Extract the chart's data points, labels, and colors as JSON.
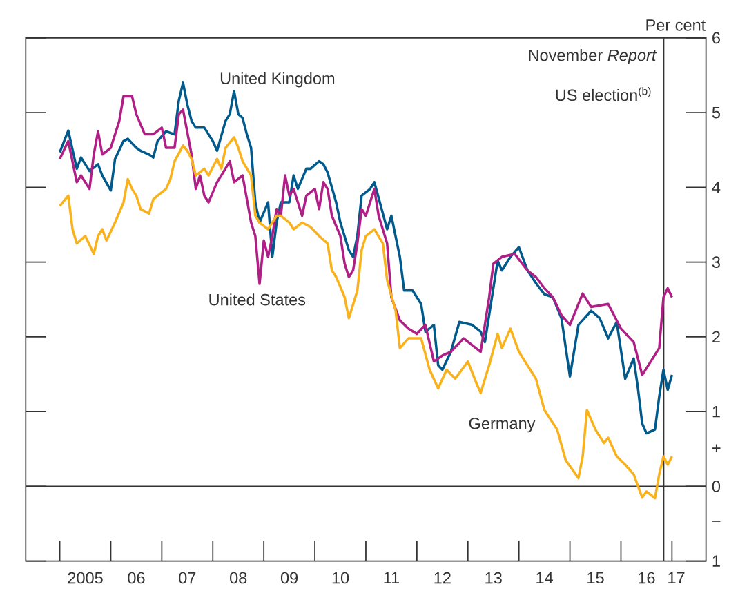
{
  "chart_data": {
    "type": "line",
    "ylabel": "Per cent",
    "legend": false,
    "marker": "none",
    "line_style": "solid",
    "xlim": [
      "2004-05",
      "2017-09"
    ],
    "ylim": [
      -1,
      6
    ],
    "xticks": [
      {
        "value": "2005-01-01",
        "label": null
      },
      {
        "value": "2006-01-01",
        "label": null
      },
      {
        "value": "2007-01-01",
        "label": null
      },
      {
        "value": "2008-01-01",
        "label": null
      },
      {
        "value": "2009-01-01",
        "label": null
      },
      {
        "value": "2010-01-01",
        "label": null
      },
      {
        "value": "2011-01-01",
        "label": null
      },
      {
        "value": "2012-01-01",
        "label": null
      },
      {
        "value": "2013-01-01",
        "label": null
      },
      {
        "value": "2014-01-01",
        "label": null
      },
      {
        "value": "2015-01-01",
        "label": null
      },
      {
        "value": "2016-01-01",
        "label": null
      },
      {
        "value": "2017-01-01",
        "label": null
      },
      {
        "value": "2005-07-01",
        "label": "2005"
      },
      {
        "value": "2006-07-01",
        "label": "06"
      },
      {
        "value": "2007-07-01",
        "label": "07"
      },
      {
        "value": "2008-07-01",
        "label": "08"
      },
      {
        "value": "2009-07-01",
        "label": "09"
      },
      {
        "value": "2010-07-01",
        "label": "10"
      },
      {
        "value": "2011-07-01",
        "label": "11"
      },
      {
        "value": "2012-07-01",
        "label": "12"
      },
      {
        "value": "2013-07-01",
        "label": "13"
      },
      {
        "value": "2014-07-01",
        "label": "14"
      },
      {
        "value": "2015-07-01",
        "label": "15"
      },
      {
        "value": "2016-07-01",
        "label": "16"
      },
      {
        "value": "2017-02-01",
        "label": "17"
      }
    ],
    "yticks": [
      6,
      5,
      4,
      3,
      2,
      1,
      0,
      {
        "value": -1,
        "label": "1"
      },
      {
        "value": 0.5,
        "label": "+"
      },
      {
        "value": -0.5,
        "label": "−"
      }
    ],
    "ref_lines": [
      {
        "axis": "x",
        "value": "2016-11-03",
        "label": "November *Report*"
      },
      {
        "axis": "y",
        "value": 0
      }
    ],
    "annotations": [
      {
        "text": "US election$^{(b)}$",
        "x": "2016-11-08",
        "y": 5.25
      }
    ],
    "series": [
      {
        "name": "United Kingdom",
        "color": "#005a8c",
        "x": [
          "2005-01",
          "2005-03",
          "2005-05",
          "2005-06",
          "2005-08",
          "2005-10",
          "2005-11",
          "2006-01",
          "2006-02",
          "2006-04",
          "2006-05",
          "2006-07",
          "2006-08",
          "2006-10",
          "2006-11",
          "2006-12",
          "2007-02",
          "2007-04",
          "2007-05",
          "2007-06",
          "2007-07",
          "2007-08",
          "2007-09",
          "2007-11",
          "2008-01",
          "2008-02",
          "2008-04",
          "2008-05",
          "2008-06",
          "2008-07",
          "2008-08",
          "2008-09",
          "2008-10",
          "2008-11",
          "2008-12",
          "2009-02",
          "2009-03",
          "2009-04",
          "2009-05",
          "2009-07",
          "2009-08",
          "2009-09",
          "2009-11",
          "2009-12",
          "2010-02",
          "2010-03",
          "2010-04",
          "2010-06",
          "2010-07",
          "2010-09",
          "2010-10",
          "2010-11",
          "2010-12",
          "2011-02",
          "2011-03",
          "2011-06",
          "2011-07",
          "2011-09",
          "2011-10",
          "2011-12",
          "2012-02",
          "2012-03",
          "2012-05",
          "2012-06",
          "2012-07",
          "2012-09",
          "2012-11",
          "2013-02",
          "2013-04",
          "2013-05",
          "2013-08",
          "2013-09",
          "2013-11",
          "2014-01",
          "2014-03",
          "2014-05",
          "2014-07",
          "2014-09",
          "2014-11",
          "2015-01",
          "2015-03",
          "2015-06",
          "2015-08",
          "2015-10",
          "2015-12",
          "2016-02",
          "2016-04",
          "2016-05",
          "2016-06",
          "2016-07",
          "2016-09",
          "2016-10",
          "2016-11",
          "2016-12",
          "2017-01"
        ],
        "values": [
          4.47,
          4.76,
          4.25,
          4.4,
          4.22,
          4.31,
          4.16,
          3.96,
          4.38,
          4.62,
          4.65,
          4.53,
          4.49,
          4.44,
          4.4,
          4.62,
          4.75,
          4.71,
          5.16,
          5.4,
          5.11,
          4.89,
          4.8,
          4.8,
          4.62,
          4.49,
          4.89,
          4.98,
          5.29,
          4.98,
          4.93,
          4.71,
          4.53,
          3.8,
          3.53,
          3.8,
          3.07,
          3.53,
          3.8,
          3.8,
          4.16,
          3.98,
          4.25,
          4.25,
          4.35,
          4.31,
          4.2,
          3.8,
          3.53,
          3.16,
          3.07,
          3.35,
          3.89,
          3.98,
          4.07,
          3.44,
          3.62,
          3.07,
          2.62,
          2.62,
          2.44,
          2.07,
          2.16,
          1.62,
          1.56,
          1.8,
          2.2,
          2.16,
          2.07,
          1.93,
          3.02,
          2.89,
          3.07,
          3.2,
          2.89,
          2.72,
          2.57,
          2.53,
          2.25,
          1.47,
          2.16,
          2.35,
          2.25,
          1.98,
          2.2,
          1.44,
          1.71,
          1.31,
          0.84,
          0.71,
          0.76,
          1.2,
          1.56,
          1.29,
          1.49
        ]
      },
      {
        "name": "United States",
        "color": "#b01f86",
        "x": [
          "2005-01",
          "2005-03",
          "2005-05",
          "2005-06",
          "2005-08",
          "2005-09",
          "2005-10",
          "2005-11",
          "2006-01",
          "2006-03",
          "2006-04",
          "2006-06",
          "2006-07",
          "2006-09",
          "2006-11",
          "2007-01",
          "2007-02",
          "2007-04",
          "2007-05",
          "2007-06",
          "2007-08",
          "2007-09",
          "2007-10",
          "2007-11",
          "2007-12",
          "2008-02",
          "2008-03",
          "2008-05",
          "2008-06",
          "2008-08",
          "2008-10",
          "2008-11",
          "2008-12",
          "2009-01",
          "2009-02",
          "2009-03",
          "2009-04",
          "2009-05",
          "2009-06",
          "2009-07",
          "2009-08",
          "2009-09",
          "2009-10",
          "2009-11",
          "2010-01",
          "2010-02",
          "2010-03",
          "2010-04",
          "2010-05",
          "2010-07",
          "2010-08",
          "2010-09",
          "2010-10",
          "2010-11",
          "2010-12",
          "2011-01",
          "2011-03",
          "2011-04",
          "2011-06",
          "2011-07",
          "2011-09",
          "2011-11",
          "2012-01",
          "2012-03",
          "2012-05",
          "2012-07",
          "2012-09",
          "2012-12",
          "2013-04",
          "2013-06",
          "2013-07",
          "2013-09",
          "2013-12",
          "2014-03",
          "2014-05",
          "2014-07",
          "2014-09",
          "2014-11",
          "2015-01",
          "2015-04",
          "2015-06",
          "2015-10",
          "2016-01",
          "2016-04",
          "2016-06",
          "2016-08",
          "2016-10",
          "2016-11",
          "2016-12",
          "2017-01"
        ],
        "values": [
          4.38,
          4.62,
          4.07,
          4.16,
          3.98,
          4.44,
          4.75,
          4.44,
          4.53,
          4.89,
          5.22,
          5.22,
          4.98,
          4.71,
          4.71,
          4.8,
          4.53,
          4.53,
          4.98,
          5.04,
          4.44,
          3.98,
          4.16,
          3.89,
          3.8,
          4.07,
          4.16,
          4.35,
          4.07,
          4.16,
          3.53,
          3.35,
          2.71,
          3.29,
          3.07,
          3.35,
          3.71,
          3.62,
          4.16,
          3.89,
          3.98,
          3.8,
          3.62,
          3.89,
          3.98,
          3.71,
          4.07,
          3.98,
          3.62,
          3.35,
          2.98,
          2.8,
          2.89,
          3.25,
          3.71,
          3.62,
          3.98,
          3.62,
          3.25,
          2.53,
          2.22,
          2.11,
          2.04,
          2.16,
          1.67,
          1.75,
          1.8,
          1.98,
          1.8,
          2.53,
          2.98,
          3.07,
          3.11,
          2.89,
          2.8,
          2.65,
          2.53,
          2.29,
          2.16,
          2.58,
          2.4,
          2.44,
          2.11,
          1.93,
          1.49,
          1.67,
          1.85,
          2.53,
          2.65,
          2.53
        ]
      },
      {
        "name": "Germany",
        "color": "#f9b21b",
        "x": [
          "2005-01",
          "2005-03",
          "2005-04",
          "2005-05",
          "2005-07",
          "2005-09",
          "2005-10",
          "2005-11",
          "2005-12",
          "2006-02",
          "2006-04",
          "2006-05",
          "2006-06",
          "2006-07",
          "2006-08",
          "2006-10",
          "2006-11",
          "2006-12",
          "2007-02",
          "2007-03",
          "2007-04",
          "2007-06",
          "2007-07",
          "2007-08",
          "2007-09",
          "2007-11",
          "2007-12",
          "2008-02",
          "2008-03",
          "2008-04",
          "2008-06",
          "2008-07",
          "2008-08",
          "2008-10",
          "2008-11",
          "2008-12",
          "2009-02",
          "2009-04",
          "2009-05",
          "2009-07",
          "2009-08",
          "2009-10",
          "2009-12",
          "2010-02",
          "2010-04",
          "2010-05",
          "2010-06",
          "2010-07",
          "2010-08",
          "2010-09",
          "2010-11",
          "2010-12",
          "2011-01",
          "2011-03",
          "2011-05",
          "2011-06",
          "2011-08",
          "2011-09",
          "2011-11",
          "2012-02",
          "2012-04",
          "2012-06",
          "2012-08",
          "2012-10",
          "2013-01",
          "2013-03",
          "2013-04",
          "2013-06",
          "2013-08",
          "2013-09",
          "2013-11",
          "2014-01",
          "2014-03",
          "2014-05",
          "2014-07",
          "2014-10",
          "2014-12",
          "2015-03",
          "2015-04",
          "2015-05",
          "2015-07",
          "2015-09",
          "2015-10",
          "2015-12",
          "2016-02",
          "2016-04",
          "2016-06",
          "2016-07",
          "2016-09",
          "2016-10",
          "2016-11",
          "2016-12",
          "2017-01"
        ],
        "values": [
          3.75,
          3.89,
          3.44,
          3.25,
          3.35,
          3.11,
          3.35,
          3.44,
          3.29,
          3.53,
          3.8,
          4.11,
          3.98,
          3.89,
          3.71,
          3.65,
          3.84,
          3.89,
          3.98,
          4.11,
          4.35,
          4.56,
          4.49,
          4.38,
          4.16,
          4.25,
          4.16,
          4.38,
          4.25,
          4.53,
          4.67,
          4.53,
          4.35,
          4.16,
          3.62,
          3.53,
          3.44,
          3.62,
          3.62,
          3.53,
          3.44,
          3.53,
          3.47,
          3.35,
          3.25,
          2.89,
          2.8,
          2.67,
          2.53,
          2.25,
          2.62,
          3.16,
          3.35,
          3.44,
          3.25,
          2.76,
          2.35,
          1.85,
          1.98,
          1.98,
          1.56,
          1.31,
          1.56,
          1.44,
          1.67,
          1.38,
          1.25,
          1.62,
          2.04,
          1.85,
          2.11,
          1.8,
          1.62,
          1.44,
          1.02,
          0.76,
          0.35,
          0.11,
          0.4,
          1.02,
          0.76,
          0.58,
          0.65,
          0.4,
          0.29,
          0.16,
          -0.15,
          -0.07,
          -0.16,
          0.16,
          0.4,
          0.29,
          0.4
        ]
      }
    ]
  }
}
